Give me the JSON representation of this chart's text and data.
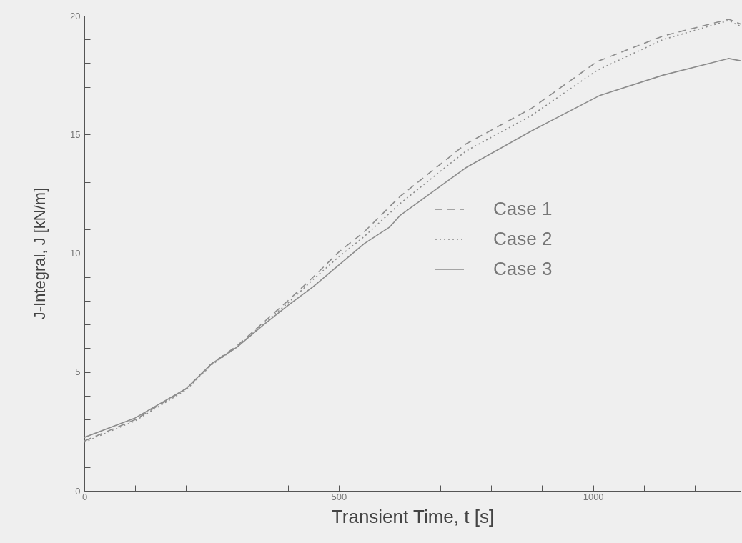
{
  "chart_data": {
    "type": "line",
    "xlabel": "Transient Time, t [s]",
    "ylabel": "J-Integral, J [kN/m]",
    "legend": "right",
    "grid": false,
    "marker": "none",
    "xlim": [
      0,
      1290
    ],
    "ylim": [
      0,
      20
    ],
    "xticks": [
      0,
      {
        "value": 100,
        "label": null
      },
      {
        "value": 200,
        "label": null
      },
      {
        "value": 300,
        "label": null
      },
      {
        "value": 400,
        "label": null
      },
      500,
      {
        "value": 600,
        "label": null
      },
      {
        "value": 700,
        "label": null
      },
      {
        "value": 800,
        "label": null
      },
      {
        "value": 900,
        "label": null
      },
      1000,
      {
        "value": 1100,
        "label": null
      },
      {
        "value": 1200,
        "label": null
      }
    ],
    "yticks": [
      0,
      {
        "value": 1,
        "label": null
      },
      {
        "value": 2,
        "label": null
      },
      {
        "value": 3,
        "label": null
      },
      {
        "value": 4,
        "label": null
      },
      5,
      {
        "value": 6,
        "label": null
      },
      {
        "value": 7,
        "label": null
      },
      {
        "value": 8,
        "label": null
      },
      {
        "value": 9,
        "label": null
      },
      10,
      {
        "value": 11,
        "label": null
      },
      {
        "value": 12,
        "label": null
      },
      {
        "value": 13,
        "label": null
      },
      {
        "value": 14,
        "label": null
      },
      15,
      {
        "value": 16,
        "label": null
      },
      {
        "value": 17,
        "label": null
      },
      {
        "value": 18,
        "label": null
      },
      {
        "value": 19,
        "label": null
      },
      20
    ],
    "series": [
      {
        "name": "Case 1",
        "color": "#8c8c8c",
        "line_style": "dashed",
        "x": [
          0,
          100,
          200,
          250,
          300,
          350,
          400,
          450,
          500,
          550,
          621,
          750,
          879,
          1008,
          1138,
          1267,
          1290
        ],
        "values": [
          2.1,
          3.0,
          4.3,
          5.35,
          6.1,
          7.05,
          8.0,
          9.0,
          10.05,
          10.9,
          12.4,
          14.6,
          16.1,
          18.07,
          19.15,
          19.85,
          19.65
        ]
      },
      {
        "name": "Case 2",
        "color": "#8c8c8c",
        "line_style": "dotted",
        "x": [
          0,
          100,
          200,
          250,
          300,
          350,
          400,
          450,
          500,
          550,
          621,
          750,
          879,
          1008,
          1138,
          1267,
          1290
        ],
        "values": [
          2.05,
          2.95,
          4.25,
          5.3,
          6.05,
          7.0,
          7.9,
          8.9,
          9.85,
          10.7,
          12.1,
          14.3,
          15.8,
          17.7,
          19.0,
          19.8,
          19.55
        ]
      },
      {
        "name": "Case 3",
        "color": "#8c8c8c",
        "line_style": "solid",
        "x": [
          0,
          100,
          200,
          250,
          300,
          350,
          400,
          450,
          500,
          550,
          600,
          621,
          750,
          879,
          1014,
          1138,
          1267,
          1290
        ],
        "values": [
          2.25,
          3.07,
          4.3,
          5.35,
          6.05,
          6.95,
          7.8,
          8.6,
          9.5,
          10.4,
          11.1,
          11.6,
          13.6,
          15.15,
          16.65,
          17.5,
          18.2,
          18.1
        ]
      }
    ]
  }
}
